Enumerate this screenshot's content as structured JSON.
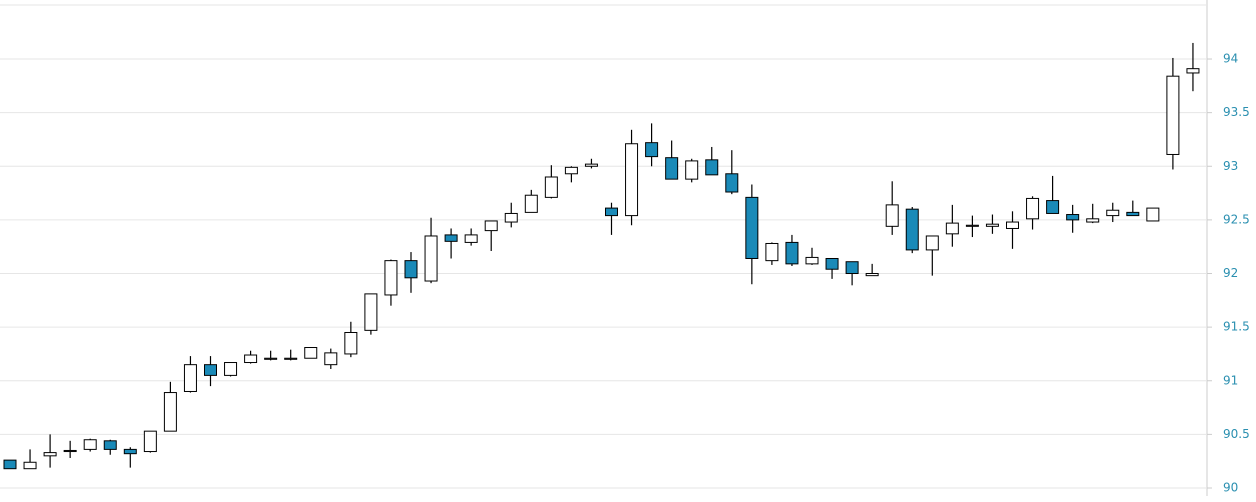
{
  "chart_data": {
    "type": "candlestick",
    "open": [
      90.26,
      90.18,
      90.3,
      90.34,
      90.36,
      90.44,
      90.36,
      90.34,
      90.53,
      90.9,
      91.15,
      91.05,
      91.17,
      91.2,
      91.2,
      91.21,
      91.15,
      91.25,
      91.47,
      91.8,
      92.12,
      91.93,
      92.36,
      92.29,
      92.4,
      92.48,
      92.57,
      92.71,
      92.93,
      93.0,
      92.61,
      92.54,
      93.22,
      93.08,
      92.88,
      93.06,
      92.93,
      92.71,
      92.12,
      92.29,
      92.09,
      92.14,
      92.11,
      91.98,
      92.44,
      92.6,
      92.22,
      92.37,
      92.44,
      92.44,
      92.42,
      92.51,
      92.68,
      92.55,
      92.48,
      92.54,
      92.57,
      92.49,
      93.11,
      93.87
    ],
    "high": [
      90.26,
      90.36,
      90.5,
      90.44,
      90.46,
      90.45,
      90.38,
      90.53,
      90.99,
      91.23,
      91.23,
      91.17,
      91.28,
      91.28,
      91.29,
      91.31,
      91.3,
      91.55,
      91.81,
      92.13,
      92.2,
      92.52,
      92.42,
      92.42,
      92.49,
      92.66,
      92.78,
      93.01,
      93.0,
      93.07,
      92.66,
      93.34,
      93.4,
      93.24,
      93.07,
      93.18,
      93.15,
      92.83,
      92.29,
      92.36,
      92.24,
      92.14,
      92.11,
      92.09,
      92.86,
      92.62,
      92.35,
      92.64,
      92.54,
      92.55,
      92.58,
      92.72,
      92.91,
      92.64,
      92.65,
      92.66,
      92.68,
      92.61,
      94.01,
      94.15
    ],
    "low": [
      90.18,
      90.18,
      90.19,
      90.28,
      90.34,
      90.31,
      90.19,
      90.33,
      90.53,
      90.89,
      90.95,
      91.04,
      91.16,
      91.19,
      91.19,
      91.21,
      91.11,
      91.22,
      91.43,
      91.7,
      91.82,
      91.91,
      92.14,
      92.26,
      92.21,
      92.43,
      92.57,
      92.7,
      92.85,
      92.98,
      92.36,
      92.45,
      93.0,
      92.88,
      92.85,
      92.92,
      92.74,
      91.9,
      92.08,
      92.07,
      92.08,
      91.95,
      91.89,
      91.98,
      92.36,
      92.19,
      91.98,
      92.25,
      92.34,
      92.37,
      92.23,
      92.41,
      92.56,
      92.38,
      92.47,
      92.48,
      92.54,
      92.49,
      92.97,
      93.7
    ],
    "close": [
      90.18,
      90.24,
      90.33,
      90.35,
      90.45,
      90.36,
      90.32,
      90.53,
      90.89,
      91.15,
      91.05,
      91.17,
      91.24,
      91.21,
      91.21,
      91.31,
      91.26,
      91.45,
      91.81,
      92.12,
      91.96,
      92.35,
      92.3,
      92.36,
      92.49,
      92.56,
      92.73,
      92.9,
      92.99,
      93.02,
      92.54,
      93.21,
      93.09,
      92.88,
      93.05,
      92.92,
      92.76,
      92.14,
      92.28,
      92.09,
      92.15,
      92.04,
      92.0,
      92.0,
      92.64,
      92.22,
      92.35,
      92.47,
      92.45,
      92.46,
      92.48,
      92.7,
      92.56,
      92.5,
      92.51,
      92.59,
      92.54,
      92.61,
      93.84,
      93.91
    ],
    "up_color": "#ffffff",
    "down_color": "#1a8ab8",
    "ylim": [
      90,
      94.5
    ],
    "yticks": [
      90,
      90.5,
      91,
      91.5,
      92,
      92.5,
      93,
      93.5,
      94
    ],
    "grid": true
  }
}
